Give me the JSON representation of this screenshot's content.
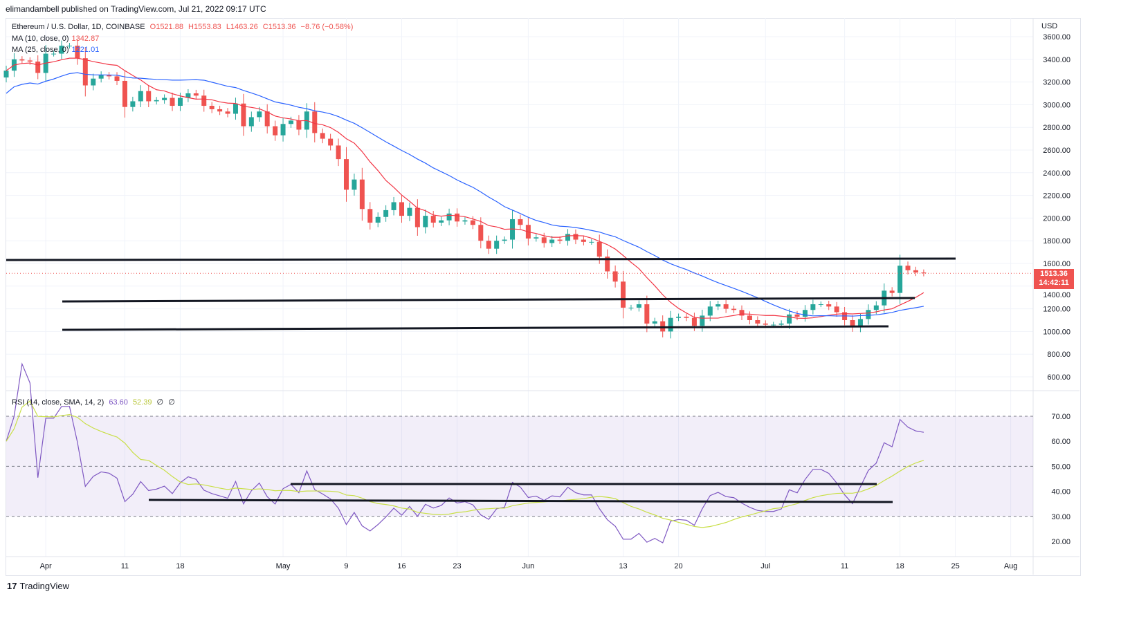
{
  "header": {
    "published": "elimandambell published on TradingView.com, Jul 21, 2022 09:17 UTC"
  },
  "legend": {
    "symbol": "Ethereum / U.S. Dollar, 1D, COINBASE",
    "o": "O1521.88",
    "h": "H1553.83",
    "l": "L1463.26",
    "c": "C1513.36",
    "change": "−8.76 (−0.58%)",
    "ma10_label": "MA (10, close, 0)",
    "ma10_value": "1342.87",
    "ma25_label": "MA (25, close, 0)",
    "ma25_value": "1221.01",
    "rsi_label": "RSI (14, close, SMA, 14, 2)",
    "rsi_value": "63.60",
    "rsi_sma_value": "52.39",
    "rsi_extra1": "∅",
    "rsi_extra2": "∅"
  },
  "price_axis": {
    "currency": "USD",
    "last_price": "1513.36",
    "countdown": "14:42:11"
  },
  "footer": {
    "brand": "TradingView"
  },
  "colors": {
    "up": "#26a69a",
    "down": "#ef5350",
    "ma10": "#f23645",
    "ma25": "#2962ff",
    "rsi": "#7e57c2",
    "rsi_sma": "#c9df47"
  },
  "chart_data": {
    "type": "candlestick",
    "start_date": "2022-03-27",
    "closes": [
      3300,
      3400,
      3390,
      3380,
      3280,
      3450,
      3450,
      3520,
      3520,
      3410,
      3170,
      3230,
      3260,
      3250,
      3210,
      2980,
      3030,
      3120,
      3030,
      3040,
      3060,
      2990,
      3060,
      3100,
      3080,
      2990,
      2960,
      2940,
      2920,
      3010,
      2810,
      2890,
      2940,
      2810,
      2730,
      2830,
      2860,
      2780,
      2940,
      2750,
      2700,
      2640,
      2520,
      2250,
      2340,
      2080,
      1960,
      2010,
      2070,
      2140,
      2020,
      2090,
      1920,
      2020,
      1960,
      1980,
      2040,
      1970,
      1980,
      1940,
      1800,
      1730,
      1800,
      1810,
      1990,
      1940,
      1820,
      1830,
      1780,
      1810,
      1800,
      1860,
      1810,
      1790,
      1790,
      1660,
      1530,
      1440,
      1210,
      1210,
      1240,
      1070,
      1090,
      1000,
      1120,
      1130,
      1120,
      1050,
      1140,
      1220,
      1240,
      1200,
      1190,
      1140,
      1100,
      1070,
      1060,
      1060,
      1070,
      1150,
      1130,
      1190,
      1240,
      1240,
      1220,
      1170,
      1100,
      1040,
      1110,
      1190,
      1230,
      1360,
      1340,
      1580,
      1540,
      1520,
      1513.36
    ],
    "price_ticks": [
      "3600.00",
      "3400.00",
      "3200.00",
      "3000.00",
      "2800.00",
      "2600.00",
      "2400.00",
      "2200.00",
      "2000.00",
      "1800.00",
      "1600.00",
      "1400.00",
      "1200.00",
      "1000.00",
      "800.00",
      "600.00"
    ],
    "price_tick_values": [
      3600,
      3400,
      3200,
      3000,
      2800,
      2600,
      2400,
      2200,
      2000,
      1800,
      1600,
      1400,
      1200,
      1000,
      800,
      600
    ],
    "rsi_ticks": [
      "70.00",
      "60.00",
      "50.00",
      "40.00",
      "30.00",
      "20.00"
    ],
    "rsi_tick_values": [
      70,
      60,
      50,
      40,
      30,
      20
    ],
    "x_ticks": [
      "Apr",
      "11",
      "18",
      "May",
      "9",
      "16",
      "23",
      "Jun",
      "13",
      "20",
      "Jul",
      "11",
      "18",
      "25",
      "Aug"
    ],
    "x_tick_days": [
      5,
      15,
      22,
      35,
      43,
      50,
      57,
      66,
      78,
      85,
      96,
      106,
      113,
      120,
      127
    ]
  }
}
